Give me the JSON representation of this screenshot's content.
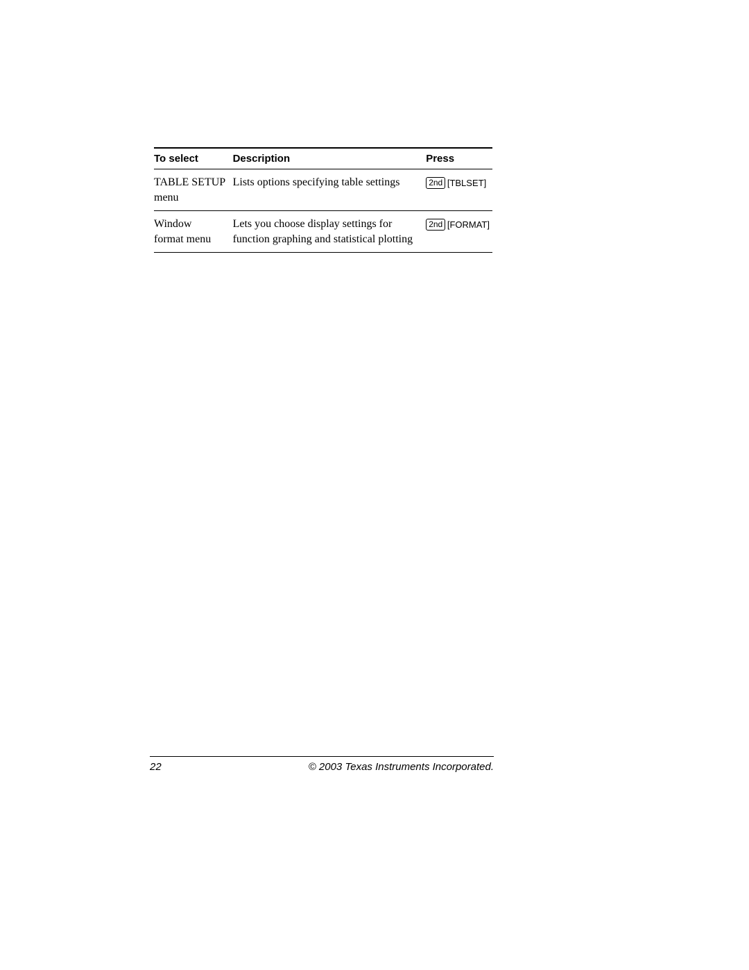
{
  "table": {
    "headers": {
      "select": "To select",
      "description": "Description",
      "press": "Press"
    },
    "rows": [
      {
        "select_line1": "TABLE SETUP",
        "select_line2": "menu",
        "description": "Lists options specifying table settings",
        "press_key1": "2nd",
        "press_key2": "TBLSET"
      },
      {
        "select_line1": "Window",
        "select_line2": "format menu",
        "description": "Lets you choose display settings for function graphing and statistical plotting",
        "press_key1": "2nd",
        "press_key2": "FORMAT"
      }
    ]
  },
  "footer": {
    "page_number": "22",
    "copyright": "© 2003 Texas Instruments Incorporated."
  }
}
